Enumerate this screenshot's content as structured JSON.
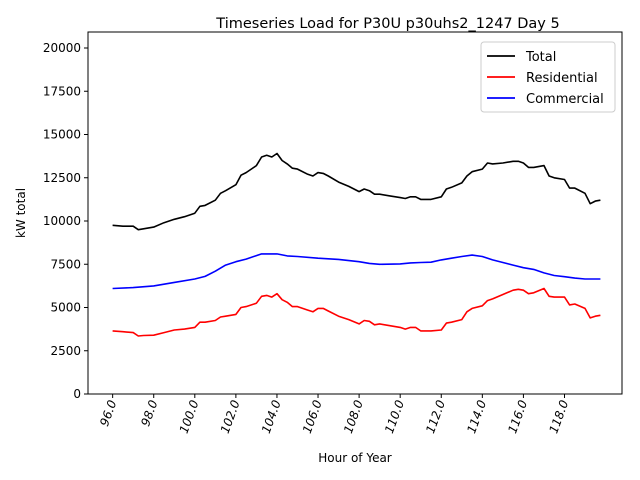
{
  "chart_data": {
    "type": "line",
    "title": "Timeseries Load for P30U p30uhs2_1247  Day 5",
    "xlabel": "Hour of Year",
    "ylabel": "kW total",
    "xlim": [
      94.8,
      120.8
    ],
    "ylim": [
      0,
      20925
    ],
    "xticks": [
      "96.0",
      "98.0",
      "100.0",
      "102.0",
      "104.0",
      "106.0",
      "108.0",
      "110.0",
      "112.0",
      "114.0",
      "116.0",
      "118.0"
    ],
    "xtick_values": [
      96,
      98,
      100,
      102,
      104,
      106,
      108,
      110,
      112,
      114,
      116,
      118
    ],
    "yticks": [
      "0",
      "2500",
      "5000",
      "7500",
      "10000",
      "12500",
      "15000",
      "17500",
      "20000"
    ],
    "ytick_values": [
      0,
      2500,
      5000,
      7500,
      10000,
      12500,
      15000,
      17500,
      20000
    ],
    "grid": false,
    "legend_position": "top-right",
    "series": [
      {
        "name": "Total",
        "color": "#000000",
        "x": [
          96,
          96.5,
          97,
          97.25,
          97.5,
          98,
          98.5,
          99,
          99.5,
          100,
          100.25,
          100.5,
          101,
          101.25,
          101.5,
          102,
          102.25,
          102.5,
          103,
          103.25,
          103.5,
          103.75,
          104,
          104.25,
          104.5,
          104.75,
          105,
          105.5,
          105.75,
          106,
          106.25,
          106.5,
          107,
          107.5,
          108,
          108.25,
          108.5,
          108.75,
          109,
          109.5,
          110,
          110.25,
          110.5,
          110.75,
          111,
          111.5,
          112,
          112.25,
          112.5,
          113,
          113.25,
          113.5,
          114,
          114.25,
          114.5,
          115,
          115.5,
          115.75,
          116,
          116.25,
          116.5,
          117,
          117.25,
          117.5,
          118,
          118.25,
          118.5,
          119,
          119.25,
          119.5,
          119.75
        ],
        "y": [
          9750,
          9700,
          9700,
          9500,
          9550,
          9650,
          9900,
          10100,
          10250,
          10450,
          10850,
          10900,
          11200,
          11600,
          11750,
          12100,
          12650,
          12800,
          13200,
          13700,
          13800,
          13700,
          13900,
          13500,
          13300,
          13050,
          13000,
          12700,
          12600,
          12800,
          12750,
          12600,
          12250,
          12000,
          11700,
          11850,
          11750,
          11550,
          11550,
          11450,
          11350,
          11300,
          11400,
          11400,
          11250,
          11250,
          11400,
          11850,
          11950,
          12200,
          12600,
          12850,
          13000,
          13350,
          13300,
          13350,
          13450,
          13450,
          13350,
          13100,
          13100,
          13200,
          12600,
          12500,
          12400,
          11900,
          11900,
          11600,
          11000,
          11150,
          11200
        ]
      },
      {
        "name": "Residential",
        "color": "#ff0000",
        "x": [
          96,
          96.5,
          97,
          97.25,
          97.5,
          98,
          98.5,
          99,
          99.5,
          100,
          100.25,
          100.5,
          101,
          101.25,
          101.5,
          102,
          102.25,
          102.5,
          103,
          103.25,
          103.5,
          103.75,
          104,
          104.25,
          104.5,
          104.75,
          105,
          105.5,
          105.75,
          106,
          106.25,
          106.5,
          107,
          107.5,
          108,
          108.25,
          108.5,
          108.75,
          109,
          109.5,
          110,
          110.25,
          110.5,
          110.75,
          111,
          111.5,
          112,
          112.25,
          112.5,
          113,
          113.25,
          113.5,
          114,
          114.25,
          114.5,
          115,
          115.5,
          115.75,
          116,
          116.25,
          116.5,
          117,
          117.25,
          117.5,
          118,
          118.25,
          118.5,
          119,
          119.25,
          119.5,
          119.75
        ],
        "y": [
          3650,
          3600,
          3550,
          3350,
          3380,
          3400,
          3550,
          3700,
          3750,
          3850,
          4150,
          4150,
          4250,
          4450,
          4500,
          4600,
          5000,
          5050,
          5250,
          5650,
          5700,
          5600,
          5800,
          5450,
          5300,
          5050,
          5050,
          4850,
          4750,
          4950,
          4950,
          4800,
          4500,
          4300,
          4050,
          4250,
          4200,
          4000,
          4050,
          3950,
          3850,
          3750,
          3850,
          3850,
          3650,
          3650,
          3700,
          4100,
          4150,
          4300,
          4750,
          4950,
          5100,
          5400,
          5500,
          5750,
          6000,
          6050,
          6000,
          5800,
          5850,
          6100,
          5650,
          5600,
          5600,
          5150,
          5200,
          4950,
          4400,
          4500,
          4550
        ]
      },
      {
        "name": "Commercial",
        "color": "#0000ff",
        "x": [
          96,
          97,
          98,
          99,
          100,
          100.5,
          101,
          101.5,
          102,
          102.5,
          103,
          103.25,
          104,
          104.5,
          105,
          106,
          107,
          108,
          108.5,
          109,
          110,
          110.5,
          111,
          111.5,
          112,
          112.5,
          113,
          113.5,
          114,
          114.5,
          115,
          115.5,
          116,
          116.5,
          117,
          117.5,
          118,
          118.5,
          119,
          119.75
        ],
        "y": [
          6100,
          6150,
          6250,
          6450,
          6650,
          6800,
          7100,
          7450,
          7650,
          7800,
          8000,
          8100,
          8100,
          7980,
          7950,
          7850,
          7780,
          7650,
          7550,
          7500,
          7520,
          7580,
          7600,
          7620,
          7750,
          7850,
          7950,
          8030,
          7950,
          7750,
          7600,
          7450,
          7300,
          7200,
          7000,
          6850,
          6780,
          6700,
          6650,
          6650
        ]
      }
    ]
  }
}
